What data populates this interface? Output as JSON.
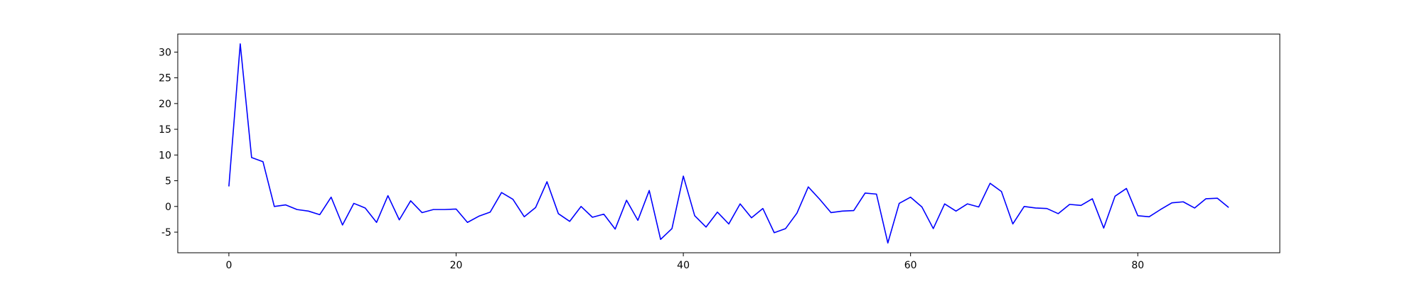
{
  "chart_data": {
    "type": "line",
    "title": "",
    "xlabel": "",
    "ylabel": "",
    "xlim": [
      -4.5,
      92.5
    ],
    "ylim": [
      -9,
      33.5
    ],
    "x_ticks": [
      0,
      20,
      40,
      60,
      80
    ],
    "y_ticks": [
      -5,
      0,
      5,
      10,
      15,
      20,
      25,
      30
    ],
    "grid": false,
    "legend": "none",
    "line_color": "#0000ff",
    "x": [
      0,
      1,
      2,
      3,
      4,
      5,
      6,
      7,
      8,
      9,
      10,
      11,
      12,
      13,
      14,
      15,
      16,
      17,
      18,
      19,
      20,
      21,
      22,
      23,
      24,
      25,
      26,
      27,
      28,
      29,
      30,
      31,
      32,
      33,
      34,
      35,
      36,
      37,
      38,
      39,
      40,
      41,
      42,
      43,
      44,
      45,
      46,
      47,
      48,
      49,
      50,
      51,
      52,
      53,
      54,
      55,
      56,
      57,
      58,
      59,
      60,
      61,
      62,
      63,
      64,
      65,
      66,
      67,
      68,
      69,
      70,
      71,
      72,
      73,
      74,
      75,
      76,
      77,
      78,
      79,
      80,
      81,
      82,
      83,
      84,
      85,
      86,
      87,
      88
    ],
    "series": [
      {
        "values": [
          3.9,
          31.6,
          9.5,
          8.7,
          0.0,
          0.3,
          -0.6,
          -0.9,
          -1.6,
          1.8,
          -3.6,
          0.6,
          -0.3,
          -3.1,
          2.1,
          -2.6,
          1.1,
          -1.2,
          -0.6,
          -0.6,
          -0.5,
          -3.1,
          -1.9,
          -1.1,
          2.7,
          1.4,
          -2.0,
          -0.2,
          4.8,
          -1.4,
          -2.9,
          0.0,
          -2.1,
          -1.5,
          -4.4,
          1.2,
          -2.7,
          3.1,
          -6.4,
          -4.3,
          5.9,
          -1.8,
          -4.0,
          -1.1,
          -3.4,
          0.5,
          -2.2,
          -0.4,
          -5.1,
          -4.3,
          -1.3,
          3.8,
          1.4,
          -1.2,
          -0.9,
          -0.8,
          2.6,
          2.4,
          -7.1,
          0.6,
          1.8,
          -0.1,
          -4.3,
          0.5,
          -0.9,
          0.5,
          -0.1,
          4.5,
          2.9,
          -3.4,
          0.0,
          -0.3,
          -0.4,
          -1.4,
          0.4,
          0.2,
          1.5,
          -4.2,
          2.0,
          3.5,
          -1.8,
          -2.0,
          -0.6,
          0.7,
          0.9,
          -0.3,
          1.5,
          1.6,
          -0.2
        ]
      }
    ]
  }
}
